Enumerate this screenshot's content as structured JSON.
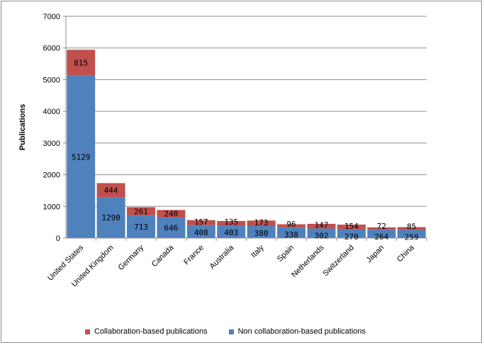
{
  "chart_data": {
    "type": "bar",
    "stacked": true,
    "title": "",
    "xlabel": "",
    "ylabel": "Publications",
    "ylim": [
      0,
      7000
    ],
    "yticks": [
      0,
      1000,
      2000,
      3000,
      4000,
      5000,
      6000,
      7000
    ],
    "grid": true,
    "legend_position": "bottom",
    "categories": [
      "United States",
      "United Kingdom",
      "Germany",
      "Canada",
      "France",
      "Australia",
      "Italy",
      "Spain",
      "Netherlands",
      "Switzerland",
      "Japan",
      "China"
    ],
    "series": [
      {
        "name": "Non collaboration-based publications",
        "color": "#4f81bd",
        "values": [
          5129,
          1290,
          713,
          646,
          408,
          403,
          380,
          338,
          302,
          270,
          264,
          259
        ]
      },
      {
        "name": "Collaboration-based publications",
        "color": "#c0504d",
        "values": [
          815,
          444,
          261,
          240,
          157,
          135,
          173,
          96,
          147,
          154,
          72,
          85
        ]
      }
    ],
    "legend_order": [
      1,
      0
    ]
  }
}
